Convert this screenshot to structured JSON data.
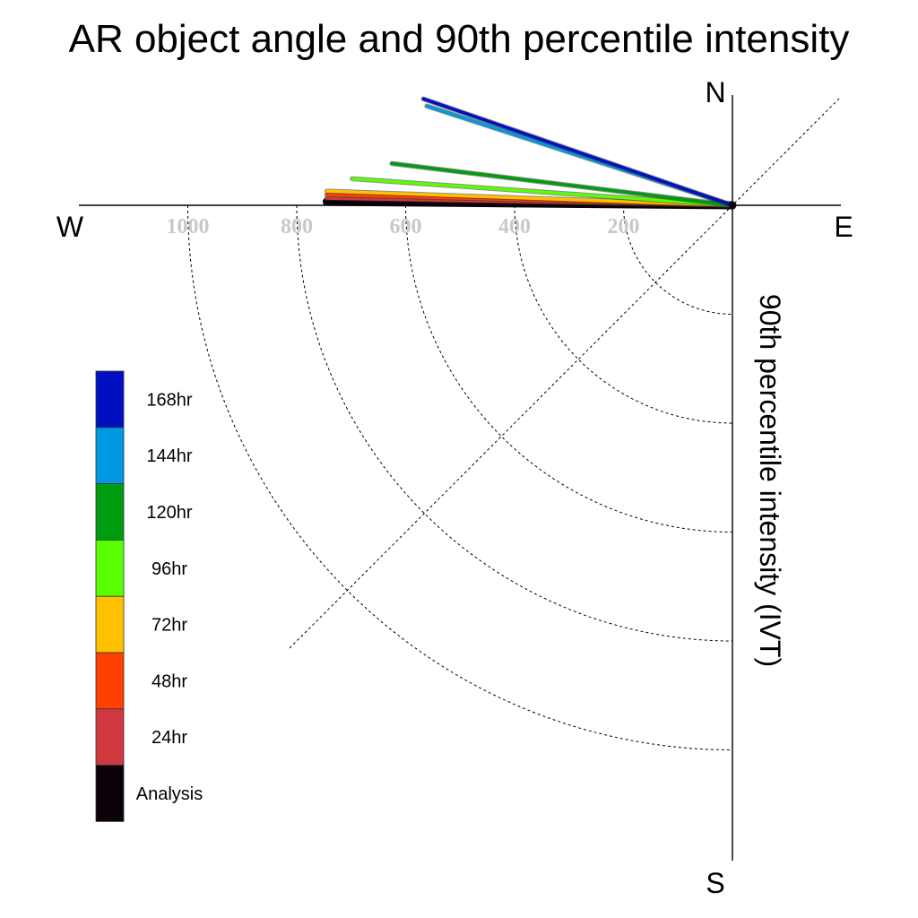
{
  "chart_data": {
    "type": "polar-vector",
    "title": "AR object angle and 90th percentile intensity",
    "ylabel": "90th percentile intensity (IVT)",
    "compass": {
      "north": "N",
      "south": "S",
      "east": "E",
      "west": "W"
    },
    "radial_ticks": [
      200,
      400,
      600,
      800,
      1000
    ],
    "rmax": 1150,
    "grid": true,
    "legend_position": "left",
    "series": [
      {
        "name": "168hr",
        "color": "#0010c0",
        "intensity": 600,
        "angle_deg": 199
      },
      {
        "name": "144hr",
        "color": "#0098e0",
        "intensity": 590,
        "angle_deg": 198
      },
      {
        "name": "120hr",
        "color": "#009c10",
        "intensity": 630,
        "angle_deg": 187
      },
      {
        "name": "96hr",
        "color": "#58ff00",
        "intensity": 700,
        "angle_deg": 184
      },
      {
        "name": "72hr",
        "color": "#ffc000",
        "intensity": 745,
        "angle_deg": 182
      },
      {
        "name": "48hr",
        "color": "#ff4000",
        "intensity": 745,
        "angle_deg": 181.5
      },
      {
        "name": "24hr",
        "color": "#d03840",
        "intensity": 745,
        "angle_deg": 181
      },
      {
        "name": "Analysis",
        "color": "#0a0208",
        "intensity": 745,
        "angle_deg": 180.5
      }
    ]
  }
}
